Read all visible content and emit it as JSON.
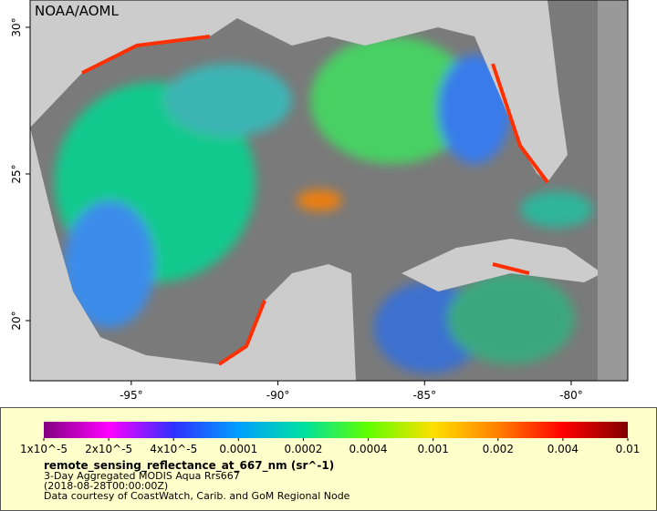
{
  "map": {
    "credit": "NOAA/AOML",
    "lon_range": [
      -98.45,
      -78.07
    ],
    "lat_range": [
      17.95,
      30.93
    ],
    "lon_ticks": [
      {
        "value": -95,
        "label": "-95°"
      },
      {
        "value": -90,
        "label": "-90°"
      },
      {
        "value": -85,
        "label": "-85°"
      },
      {
        "value": -80,
        "label": "-80°"
      }
    ],
    "lat_ticks": [
      {
        "value": 30,
        "label": "30°"
      },
      {
        "value": 25,
        "label": "25°"
      },
      {
        "value": 20,
        "label": "20°"
      }
    ]
  },
  "legend": {
    "colors": [
      "#800080",
      "#ff00ff",
      "#3030ff",
      "#00a0ff",
      "#00e0a0",
      "#60ff00",
      "#ffe000",
      "#ff8000",
      "#ff0000",
      "#800000"
    ],
    "ticks": [
      {
        "value": 1e-05,
        "label": "1x10^-5"
      },
      {
        "value": 2e-05,
        "label": "2x10^-5"
      },
      {
        "value": 4e-05,
        "label": "4x10^-5"
      },
      0.0001,
      0.0002,
      0.0004,
      0.001,
      0.002,
      0.004,
      0.01
    ],
    "title": "remote_sensing_reflectance_at_667_nm (sr^-1)",
    "lines": [
      "3-Day Aggregated MODIS Aqua Rrs667",
      "(2018-08-28T00:00:00Z)",
      "Data courtesy of CoastWatch, Carib. and GoM Regional Node"
    ]
  }
}
